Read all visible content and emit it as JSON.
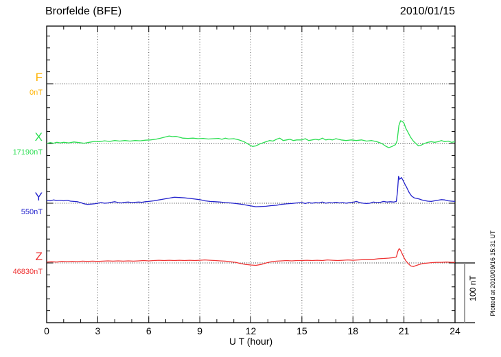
{
  "header": {
    "title": "Brorfelde (BFE)",
    "date": "2010/01/15"
  },
  "chart_data": {
    "type": "line",
    "title": "Brorfelde (BFE)",
    "date": "2010/01/15",
    "xlabel": "U T (hour)",
    "ylabel": "",
    "xlim": [
      0,
      24
    ],
    "x_ticks": [
      0,
      3,
      6,
      9,
      12,
      15,
      18,
      21,
      24
    ],
    "x_minor_tick_hours": 1,
    "grid": "dotted vertical lines every 3 hours; dotted horizontal baseline per component",
    "baseline_spacing_nT": 100,
    "y_minor_tick_nT": 20,
    "scale_bar_label": "100 nT",
    "plotted_at": "Plotted at 2010/09/16 15:31 UT",
    "legend_position": "left margin, one label per trace baseline",
    "series": [
      {
        "name": "F",
        "baseline_label": "0nT",
        "color": "#FFB300",
        "note": "no trace plotted, baseline only",
        "points_hour_offset_nT": []
      },
      {
        "name": "X",
        "baseline_label": "17190nT",
        "color": "#2CDE52",
        "points_hour_offset_nT": [
          [
            0,
            0
          ],
          [
            0.2,
            1.5
          ],
          [
            0.4,
            0.5
          ],
          [
            0.6,
            2
          ],
          [
            0.8,
            1
          ],
          [
            1,
            2
          ],
          [
            1.3,
            1
          ],
          [
            1.6,
            2.5
          ],
          [
            1.9,
            1.5
          ],
          [
            2.2,
            0.5
          ],
          [
            2.5,
            2
          ],
          [
            2.8,
            3.5
          ],
          [
            3.1,
            3
          ],
          [
            3.4,
            4.5
          ],
          [
            3.7,
            3.5
          ],
          [
            4,
            5
          ],
          [
            4.3,
            4
          ],
          [
            4.6,
            5
          ],
          [
            4.9,
            4
          ],
          [
            5.2,
            5
          ],
          [
            5.5,
            4.5
          ],
          [
            5.8,
            5.5
          ],
          [
            6.1,
            6
          ],
          [
            6.4,
            7
          ],
          [
            6.7,
            9
          ],
          [
            7,
            11
          ],
          [
            7.2,
            12.5
          ],
          [
            7.4,
            11.5
          ],
          [
            7.6,
            12
          ],
          [
            7.8,
            10.5
          ],
          [
            8,
            9
          ],
          [
            8.3,
            8.5
          ],
          [
            8.6,
            9
          ],
          [
            8.9,
            8
          ],
          [
            9.2,
            8.5
          ],
          [
            9.5,
            7.5
          ],
          [
            9.8,
            8
          ],
          [
            10.1,
            8.5
          ],
          [
            10.3,
            7
          ],
          [
            10.5,
            9
          ],
          [
            10.7,
            7.5
          ],
          [
            11,
            8
          ],
          [
            11.3,
            6
          ],
          [
            11.6,
            3
          ],
          [
            11.9,
            -2
          ],
          [
            12.1,
            -5
          ],
          [
            12.3,
            -4
          ],
          [
            12.5,
            -1
          ],
          [
            12.7,
            1
          ],
          [
            12.9,
            3
          ],
          [
            13.1,
            5
          ],
          [
            13.3,
            4
          ],
          [
            13.5,
            7
          ],
          [
            13.7,
            9
          ],
          [
            13.9,
            5
          ],
          [
            14.1,
            6
          ],
          [
            14.3,
            7
          ],
          [
            14.5,
            5
          ],
          [
            14.7,
            6
          ],
          [
            15,
            6
          ],
          [
            15.2,
            8
          ],
          [
            15.4,
            5
          ],
          [
            15.6,
            6
          ],
          [
            15.8,
            7
          ],
          [
            16,
            6
          ],
          [
            16.2,
            9
          ],
          [
            16.4,
            6
          ],
          [
            16.6,
            7
          ],
          [
            16.8,
            6
          ],
          [
            17,
            8
          ],
          [
            17.3,
            6
          ],
          [
            17.6,
            5
          ],
          [
            17.9,
            6
          ],
          [
            18.2,
            5
          ],
          [
            18.5,
            6
          ],
          [
            18.8,
            4
          ],
          [
            19.1,
            5
          ],
          [
            19.4,
            3
          ],
          [
            19.7,
            0
          ],
          [
            19.9,
            -4
          ],
          [
            20.1,
            -7
          ],
          [
            20.3,
            -5
          ],
          [
            20.5,
            -2
          ],
          [
            20.6,
            5
          ],
          [
            20.7,
            30
          ],
          [
            20.8,
            38
          ],
          [
            20.9,
            37
          ],
          [
            21,
            34
          ],
          [
            21.1,
            26
          ],
          [
            21.25,
            18
          ],
          [
            21.4,
            10
          ],
          [
            21.55,
            4
          ],
          [
            21.7,
            0
          ],
          [
            21.85,
            -4
          ],
          [
            22,
            -3
          ],
          [
            22.2,
            0
          ],
          [
            22.4,
            2
          ],
          [
            22.6,
            3
          ],
          [
            22.8,
            2
          ],
          [
            23,
            3
          ],
          [
            23.2,
            5
          ],
          [
            23.4,
            3
          ],
          [
            23.6,
            4
          ],
          [
            23.8,
            2
          ],
          [
            24,
            3
          ]
        ]
      },
      {
        "name": "Y",
        "baseline_label": "550nT",
        "color": "#2222CC",
        "points_hour_offset_nT": [
          [
            0,
            5
          ],
          [
            0.2,
            4
          ],
          [
            0.4,
            5.5
          ],
          [
            0.6,
            4.5
          ],
          [
            0.8,
            5
          ],
          [
            1,
            4
          ],
          [
            1.2,
            5
          ],
          [
            1.4,
            3.5
          ],
          [
            1.6,
            3
          ],
          [
            1.8,
            2.5
          ],
          [
            2,
            1
          ],
          [
            2.2,
            -1
          ],
          [
            2.4,
            -2
          ],
          [
            2.6,
            -1.5
          ],
          [
            2.8,
            -1
          ],
          [
            3,
            0
          ],
          [
            3.2,
            1
          ],
          [
            3.4,
            0
          ],
          [
            3.6,
            0.5
          ],
          [
            3.8,
            1.5
          ],
          [
            4,
            2.5
          ],
          [
            4.2,
            1
          ],
          [
            4.4,
            0.5
          ],
          [
            4.6,
            1.5
          ],
          [
            4.8,
            2
          ],
          [
            5,
            1
          ],
          [
            5.2,
            1.5
          ],
          [
            5.4,
            2
          ],
          [
            5.6,
            1.5
          ],
          [
            5.8,
            2.5
          ],
          [
            6,
            3
          ],
          [
            6.3,
            4
          ],
          [
            6.6,
            5.5
          ],
          [
            6.9,
            7
          ],
          [
            7.2,
            8.5
          ],
          [
            7.5,
            10
          ],
          [
            7.8,
            9.5
          ],
          [
            8.1,
            9
          ],
          [
            8.4,
            8
          ],
          [
            8.7,
            7
          ],
          [
            9,
            6
          ],
          [
            9.3,
            4
          ],
          [
            9.6,
            3
          ],
          [
            9.9,
            2.5
          ],
          [
            10.2,
            2
          ],
          [
            10.5,
            1
          ],
          [
            10.8,
            0.5
          ],
          [
            11.1,
            -0.5
          ],
          [
            11.4,
            -1.5
          ],
          [
            11.7,
            -3
          ],
          [
            12,
            -4.5
          ],
          [
            12.3,
            -6
          ],
          [
            12.6,
            -5.5
          ],
          [
            12.9,
            -5
          ],
          [
            13.2,
            -4
          ],
          [
            13.5,
            -3.5
          ],
          [
            13.8,
            -2
          ],
          [
            14.1,
            -1
          ],
          [
            14.4,
            -0.5
          ],
          [
            14.7,
            0.5
          ],
          [
            15,
            1
          ],
          [
            15.2,
            -0.5
          ],
          [
            15.4,
            1
          ],
          [
            15.6,
            0
          ],
          [
            15.8,
            1
          ],
          [
            16,
            0.5
          ],
          [
            16.2,
            2
          ],
          [
            16.4,
            0
          ],
          [
            16.6,
            1
          ],
          [
            16.8,
            0.5
          ],
          [
            17,
            1.5
          ],
          [
            17.2,
            0.5
          ],
          [
            17.4,
            1
          ],
          [
            17.6,
            0
          ],
          [
            17.8,
            1
          ],
          [
            18,
            1.5
          ],
          [
            18.2,
            3
          ],
          [
            18.4,
            1
          ],
          [
            18.6,
            0
          ],
          [
            18.8,
            -0.5
          ],
          [
            19,
            0
          ],
          [
            19.2,
            2
          ],
          [
            19.4,
            1
          ],
          [
            19.6,
            1.5
          ],
          [
            19.8,
            3
          ],
          [
            20,
            2
          ],
          [
            20.2,
            2.5
          ],
          [
            20.4,
            2
          ],
          [
            20.55,
            3
          ],
          [
            20.62,
            20
          ],
          [
            20.68,
            45
          ],
          [
            20.75,
            40
          ],
          [
            20.85,
            43
          ],
          [
            20.95,
            38
          ],
          [
            21.05,
            32
          ],
          [
            21.15,
            27
          ],
          [
            21.3,
            18
          ],
          [
            21.45,
            12
          ],
          [
            21.6,
            9
          ],
          [
            21.75,
            8
          ],
          [
            21.9,
            7
          ],
          [
            22.05,
            5.5
          ],
          [
            22.2,
            4.5
          ],
          [
            22.4,
            3.5
          ],
          [
            22.6,
            3
          ],
          [
            22.8,
            4
          ],
          [
            23,
            5
          ],
          [
            23.2,
            6
          ],
          [
            23.4,
            5.5
          ],
          [
            23.6,
            4
          ],
          [
            23.8,
            3.5
          ],
          [
            24,
            3
          ]
        ]
      },
      {
        "name": "Z",
        "baseline_label": "46830nT",
        "color": "#EE3333",
        "points_hour_offset_nT": [
          [
            0,
            1.5
          ],
          [
            0.3,
            2
          ],
          [
            0.6,
            1.5
          ],
          [
            0.9,
            2.5
          ],
          [
            1.2,
            2
          ],
          [
            1.5,
            2.5
          ],
          [
            1.8,
            2
          ],
          [
            2.1,
            3
          ],
          [
            2.4,
            2.5
          ],
          [
            2.7,
            3
          ],
          [
            3,
            2.5
          ],
          [
            3.3,
            3
          ],
          [
            3.6,
            3.5
          ],
          [
            3.9,
            3
          ],
          [
            4.2,
            3.5
          ],
          [
            4.5,
            3
          ],
          [
            4.8,
            3.5
          ],
          [
            5.1,
            3
          ],
          [
            5.4,
            3.5
          ],
          [
            5.7,
            4
          ],
          [
            6,
            3.5
          ],
          [
            6.3,
            4
          ],
          [
            6.6,
            4.5
          ],
          [
            6.9,
            4
          ],
          [
            7.2,
            4.5
          ],
          [
            7.5,
            4
          ],
          [
            7.8,
            4.5
          ],
          [
            8.1,
            4
          ],
          [
            8.4,
            4.5
          ],
          [
            8.7,
            4
          ],
          [
            9,
            4.5
          ],
          [
            9.3,
            5
          ],
          [
            9.6,
            4.5
          ],
          [
            9.9,
            4
          ],
          [
            10.2,
            3.5
          ],
          [
            10.5,
            3
          ],
          [
            10.8,
            2
          ],
          [
            11.1,
            1
          ],
          [
            11.4,
            -1
          ],
          [
            11.7,
            -2.5
          ],
          [
            12,
            -3.5
          ],
          [
            12.3,
            -4
          ],
          [
            12.6,
            -2.5
          ],
          [
            12.9,
            0
          ],
          [
            13.2,
            2
          ],
          [
            13.5,
            3
          ],
          [
            13.8,
            3.5
          ],
          [
            14.1,
            4
          ],
          [
            14.4,
            3.5
          ],
          [
            14.7,
            4
          ],
          [
            15,
            4
          ],
          [
            15.3,
            4.5
          ],
          [
            15.6,
            4
          ],
          [
            15.9,
            4.5
          ],
          [
            16.2,
            4
          ],
          [
            16.5,
            5
          ],
          [
            16.8,
            4.5
          ],
          [
            17.1,
            4
          ],
          [
            17.4,
            4.5
          ],
          [
            17.7,
            5
          ],
          [
            18,
            4.5
          ],
          [
            18.3,
            5
          ],
          [
            18.6,
            5.5
          ],
          [
            18.9,
            6
          ],
          [
            19.2,
            6
          ],
          [
            19.5,
            7
          ],
          [
            19.8,
            7.5
          ],
          [
            20.1,
            8
          ],
          [
            20.4,
            9
          ],
          [
            20.55,
            10
          ],
          [
            20.65,
            20
          ],
          [
            20.72,
            24
          ],
          [
            20.8,
            21
          ],
          [
            20.9,
            15
          ],
          [
            21,
            9
          ],
          [
            21.1,
            4
          ],
          [
            21.25,
            -1
          ],
          [
            21.4,
            -5
          ],
          [
            21.55,
            -6
          ],
          [
            21.7,
            -4.5
          ],
          [
            21.9,
            -2.5
          ],
          [
            22.1,
            -1
          ],
          [
            22.3,
            -0.5
          ],
          [
            22.6,
            0.5
          ],
          [
            22.9,
            1
          ],
          [
            23.2,
            1
          ],
          [
            23.5,
            1.5
          ],
          [
            23.8,
            1
          ],
          [
            24,
            1
          ]
        ]
      }
    ]
  }
}
